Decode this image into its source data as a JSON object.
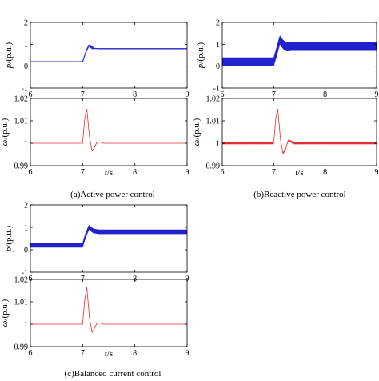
{
  "figure": {
    "captions": [
      "(a)Active power control",
      "(b)Reactive power control",
      "(c)Balanced current control"
    ]
  },
  "colors": {
    "power": "#2222cc",
    "omega": "#e03030",
    "axis": "#000000"
  },
  "chart_data": [
    {
      "type": "line",
      "panel": "a-power",
      "ylabel_var": "p",
      "ylabel_unit": "/(p.u.)",
      "xlim": [
        6,
        9
      ],
      "ylim": [
        -1,
        2
      ],
      "xticks": [
        "6",
        "7",
        "8",
        "9"
      ],
      "yticks": [
        "-1",
        "0",
        "1",
        "2"
      ],
      "series": [
        {
          "x": [
            6,
            7.0,
            7.06,
            7.12,
            7.2,
            7.3,
            7.5,
            8,
            9
          ],
          "y": [
            0.2,
            0.2,
            0.65,
            0.95,
            0.82,
            0.8,
            0.8,
            0.8,
            0.8
          ],
          "ripple": 0.02
        }
      ]
    },
    {
      "type": "line",
      "panel": "a-omega",
      "ylabel_var": "ω",
      "ylabel_unit": "/(p.u.)",
      "xlim": [
        6,
        9
      ],
      "ylim": [
        0.99,
        1.02
      ],
      "xlabel_var": "t",
      "xlabel_unit": "/s",
      "xticks": [
        "6",
        "7",
        "8",
        "9"
      ],
      "yticks": [
        "0.99",
        "1",
        "1.01",
        "1.02"
      ],
      "series": [
        {
          "x": [
            6,
            7.0,
            7.04,
            7.08,
            7.13,
            7.18,
            7.22,
            7.27,
            7.33,
            7.4,
            7.5,
            9
          ],
          "y": [
            1.0,
            1.0,
            1.011,
            1.0153,
            1.003,
            0.9965,
            0.9978,
            1.0003,
            1.0006,
            1.0,
            1.0,
            1.0
          ]
        }
      ]
    },
    {
      "type": "line",
      "panel": "b-power",
      "ylabel_var": "p",
      "ylabel_unit": "/(p.u.)",
      "xlim": [
        6,
        9
      ],
      "ylim": [
        -1,
        2
      ],
      "xticks": [
        "6",
        "7",
        "8",
        "9"
      ],
      "yticks": [
        "-1",
        "0",
        "1",
        "2"
      ],
      "series": [
        {
          "x": [
            6,
            7.0,
            7.05,
            7.12,
            7.18,
            7.25,
            7.35,
            7.5,
            9
          ],
          "y": [
            0.2,
            0.2,
            0.6,
            1.2,
            1.0,
            0.88,
            0.9,
            0.9,
            0.9
          ],
          "ripple": 0.2
        }
      ]
    },
    {
      "type": "line",
      "panel": "b-omega",
      "ylabel_var": "ω",
      "ylabel_unit": "/(p.u.)",
      "xlim": [
        6,
        9
      ],
      "ylim": [
        0.99,
        1.02
      ],
      "xlabel_var": "t",
      "xlabel_unit": "/s",
      "xticks": [
        "6",
        "7",
        "8",
        "9"
      ],
      "yticks": [
        "0.99",
        "1",
        "1.01",
        "1.02"
      ],
      "series": [
        {
          "x": [
            6,
            7.0,
            7.04,
            7.08,
            7.13,
            7.18,
            7.23,
            7.28,
            7.33,
            7.4,
            7.5,
            9
          ],
          "y": [
            1.0,
            1.0,
            1.011,
            1.0152,
            1.002,
            0.9955,
            0.9972,
            1.0012,
            1.0008,
            1.0,
            1.0,
            1.0
          ],
          "ripple": 0.00015
        }
      ]
    },
    {
      "type": "line",
      "panel": "c-power",
      "ylabel_var": "p",
      "ylabel_unit": "/(p.u.)",
      "xlim": [
        6,
        9
      ],
      "ylim": [
        -1,
        2
      ],
      "xticks": [
        "6",
        "7",
        "8",
        "9"
      ],
      "yticks": [
        "-1",
        "0",
        "1",
        "2"
      ],
      "series": [
        {
          "x": [
            6,
            7.0,
            7.05,
            7.12,
            7.2,
            7.3,
            7.5,
            9
          ],
          "y": [
            0.2,
            0.2,
            0.6,
            1.0,
            0.85,
            0.8,
            0.8,
            0.8
          ],
          "ripple": 0.1
        }
      ]
    },
    {
      "type": "line",
      "panel": "c-omega",
      "ylabel_var": "ω",
      "ylabel_unit": "/(p.u.)",
      "xlim": [
        6,
        9
      ],
      "ylim": [
        0.99,
        1.02
      ],
      "xlabel_var": "t",
      "xlabel_unit": "/s",
      "xticks": [
        "6",
        "7",
        "8",
        "9"
      ],
      "yticks": [
        "0.99",
        "1",
        "1.01",
        "1.02"
      ],
      "series": [
        {
          "x": [
            6,
            7.0,
            7.04,
            7.08,
            7.13,
            7.18,
            7.22,
            7.27,
            7.33,
            7.4,
            7.5,
            9
          ],
          "y": [
            1.0,
            1.0,
            1.011,
            1.0165,
            1.003,
            0.9963,
            0.9978,
            1.0003,
            1.0006,
            1.0,
            1.0,
            1.0
          ]
        }
      ]
    }
  ]
}
